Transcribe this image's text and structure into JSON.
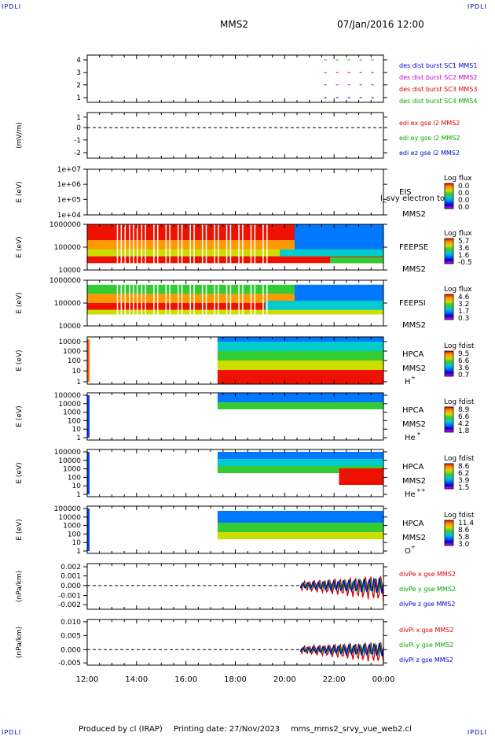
{
  "header": {
    "corner_label": "IPDLI",
    "spacecraft": "MMS2",
    "datetime": "07/Jan/2016 12:00"
  },
  "footer": {
    "produced_by": "Produced by cl (IRAP)",
    "printing_date": "Printing date: 27/Nov/2023",
    "filename": "mms_mms2_srvy_vue_web2.cl"
  },
  "time_axis": {
    "start": "12:00",
    "end": "00:00",
    "tick_labels": [
      "12:00",
      "14:00",
      "16:00",
      "18:00",
      "20:00",
      "22:00",
      "00:00"
    ]
  },
  "chart_data": [
    {
      "type": "line",
      "ylabel": "",
      "yticks": [
        "4",
        "3",
        "2",
        "1"
      ],
      "ylim": [
        0.5,
        4.5
      ],
      "legend": [
        {
          "label": "des dist burst SC1 MMS1",
          "color": "#0000cc"
        },
        {
          "label": "des dist burst SC2 MMS2",
          "color": "#cc00cc"
        },
        {
          "label": "des dist burst SC3 MMS3",
          "color": "#dd0000"
        },
        {
          "label": "des dist burst SC4 MMS4",
          "color": "#00aa00"
        }
      ],
      "series": [
        {
          "values": [
            4,
            4
          ],
          "color": "#00aa00"
        },
        {
          "values": [
            3,
            3
          ],
          "color": "#dd0000"
        },
        {
          "values": [
            2,
            2
          ],
          "color": "#cc00cc"
        },
        {
          "values": [
            1,
            1
          ],
          "color": "#0000cc"
        }
      ]
    },
    {
      "type": "line",
      "ylabel": "(mV/m)",
      "yticks": [
        "1",
        "0",
        "-1",
        "-2"
      ],
      "ylim": [
        -2.5,
        1.5
      ],
      "legend": [
        {
          "label": "edi ex gse l2 MMS2",
          "color": "#dd0000"
        },
        {
          "label": "edi ey gse l2 MMS2",
          "color": "#00aa00"
        },
        {
          "label": "edi ez gse l2 MMS2",
          "color": "#0000cc"
        }
      ]
    },
    {
      "type": "heatmap",
      "ylabel": "E (eV)",
      "yticks": [
        "1e+07",
        "1e+06",
        "1e+05",
        "1e+04"
      ],
      "instrument": "EIS",
      "spacecraft": "MMS2",
      "overlay_text": "l_svy electron to",
      "cbar_title": "Log flux",
      "cbar_ticks": [
        "0.0",
        "0.0",
        "0.0",
        "0.0"
      ]
    },
    {
      "type": "heatmap",
      "ylabel": "E (eV)",
      "yticks": [
        "1000000",
        "100000",
        "10000"
      ],
      "instrument": "FEEPSE",
      "spacecraft": "MMS2",
      "cbar_title": "Log flux",
      "cbar_ticks": [
        "5.7",
        "3.6",
        "1.6",
        "-0.5"
      ]
    },
    {
      "type": "heatmap",
      "ylabel": "E (eV)",
      "yticks": [
        "1000000",
        "100000",
        "10000"
      ],
      "instrument": "FEEPSI",
      "spacecraft": "MMS2",
      "cbar_title": "Log flux",
      "cbar_ticks": [
        "4.6",
        "3.2",
        "1.7",
        "0.3"
      ]
    },
    {
      "type": "heatmap",
      "ylabel": "E (eV)",
      "yticks": [
        "10000",
        "1000",
        "100",
        "10",
        "1"
      ],
      "instrument": "HPCA",
      "spacecraft": "MMS2",
      "species": "H",
      "species_sup": "+",
      "cbar_title": "Log fdist",
      "cbar_ticks": [
        "9.5",
        "6.6",
        "3.6",
        "0.7"
      ]
    },
    {
      "type": "heatmap",
      "ylabel": "E (eV)",
      "yticks": [
        "100000",
        "10000",
        "1000",
        "100",
        "10",
        "1"
      ],
      "instrument": "HPCA",
      "spacecraft": "MMS2",
      "species": "He",
      "species_sup": "+",
      "cbar_title": "Log fdist",
      "cbar_ticks": [
        "8.9",
        "6.6",
        "4.2",
        "1.8"
      ]
    },
    {
      "type": "heatmap",
      "ylabel": "E (eV)",
      "yticks": [
        "100000",
        "10000",
        "1000",
        "100",
        "10",
        "1"
      ],
      "instrument": "HPCA",
      "spacecraft": "MMS2",
      "species": "He",
      "species_sup": "++",
      "cbar_title": "Log fdist",
      "cbar_ticks": [
        "8.6",
        "6.2",
        "3.9",
        "1.5"
      ]
    },
    {
      "type": "heatmap",
      "ylabel": "E (eV)",
      "yticks": [
        "100000",
        "10000",
        "1000",
        "100",
        "10",
        "1"
      ],
      "instrument": "HPCA",
      "spacecraft": "MMS2",
      "species": "O",
      "species_sup": "+",
      "cbar_title": "Log fdist",
      "cbar_ticks": [
        "11.4",
        "8.6",
        "5.8",
        "3.0"
      ]
    },
    {
      "type": "line",
      "ylabel": "(nPa/km)",
      "yticks": [
        "0.002",
        "0.001",
        "0.000",
        "-0.001",
        "-0.002"
      ],
      "ylim": [
        -0.0027,
        0.0022
      ],
      "legend": [
        {
          "label": "divPe x gse MMS2",
          "color": "#dd0000"
        },
        {
          "label": "divPe y gse MMS2",
          "color": "#00aa00"
        },
        {
          "label": "divPe z gse MMS2",
          "color": "#0000cc"
        }
      ]
    },
    {
      "type": "line",
      "ylabel": "(nPa/km)",
      "yticks": [
        "0.010",
        "0.005",
        "0.000",
        "-0.005"
      ],
      "ylim": [
        -0.0065,
        0.011
      ],
      "legend": [
        {
          "label": "divPi x gse MMS2",
          "color": "#dd0000"
        },
        {
          "label": "divPi y gse MMS2",
          "color": "#00aa00"
        },
        {
          "label": "divPi z gse MMS2",
          "color": "#0000cc"
        }
      ]
    }
  ]
}
